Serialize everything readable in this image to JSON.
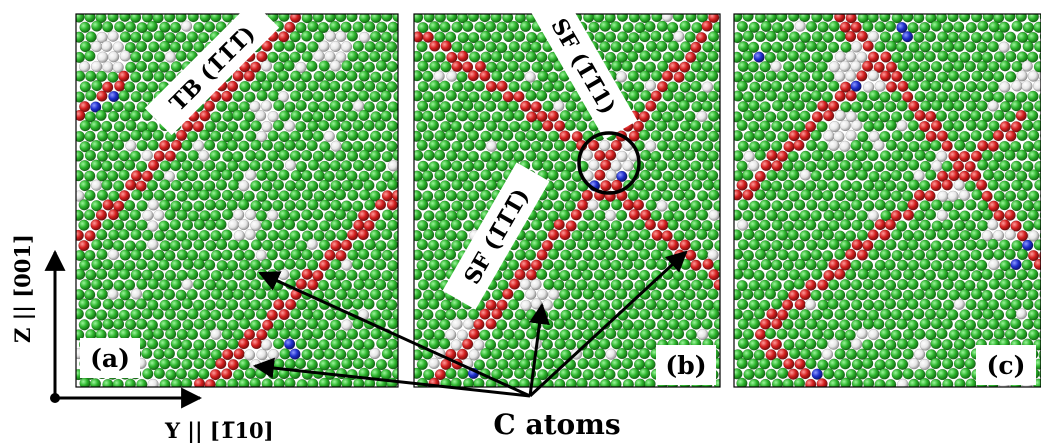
{
  "figure": {
    "panels": [
      {
        "label": "(a)",
        "annotations": [
          "TB (1̅1̅1̅)"
        ]
      },
      {
        "label": "(b)",
        "annotations": [
          "SF (1̅1̅1)",
          "SF (1̅1̅1̅)"
        ]
      },
      {
        "label": "(c)",
        "annotations": []
      }
    ],
    "axes": {
      "z_label": "Z || [001]",
      "y_label": "Y || [1̅10]"
    },
    "callout_label": "C atoms",
    "atom_colors": {
      "green": "#2db52d",
      "red": "#d42020",
      "white": "#e6e6e6",
      "blue": "#1f2fcc"
    }
  }
}
